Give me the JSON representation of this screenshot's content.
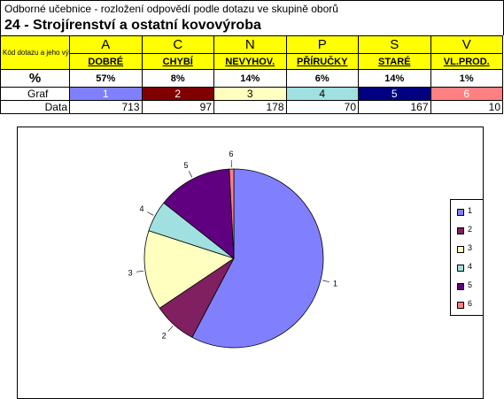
{
  "sheet": {
    "subtitle": "Odborné učebnice - rozložení odpovědí podle dotazu ve skupině oborů",
    "heading": "24 - Strojírenství a ostatní kovovýroba",
    "row_labels": {
      "kod": "Kód dotazu a jeho význam",
      "pct": "%",
      "graf": "Graf",
      "data": "Data"
    },
    "columns": [
      {
        "code": "A",
        "meaning": "DOBRÉ",
        "pct": "57%",
        "graf": "1",
        "data": "713"
      },
      {
        "code": "C",
        "meaning": "CHYBÍ",
        "pct": "8%",
        "graf": "2",
        "data": "97"
      },
      {
        "code": "N",
        "meaning": "NEVYHOV.",
        "pct": "14%",
        "graf": "3",
        "data": "178"
      },
      {
        "code": "P",
        "meaning": "PŘÍRUČKY",
        "pct": "6%",
        "graf": "4",
        "data": "70"
      },
      {
        "code": "S",
        "meaning": "STARÉ",
        "pct": "14%",
        "graf": "5",
        "data": "167"
      },
      {
        "code": "V",
        "meaning": "VL.PROD.",
        "pct": "1%",
        "graf": "6",
        "data": "10"
      }
    ]
  },
  "chart_data": {
    "type": "pie",
    "categories": [
      "1",
      "2",
      "3",
      "4",
      "5",
      "6"
    ],
    "values": [
      713,
      97,
      178,
      70,
      167,
      10
    ],
    "colors": [
      "#8080ff",
      "#802060",
      "#ffffc0",
      "#a0e0e0",
      "#600080",
      "#ff8080"
    ],
    "legend": [
      "1",
      "2",
      "3",
      "4",
      "5",
      "6"
    ],
    "legend_position": "right"
  }
}
